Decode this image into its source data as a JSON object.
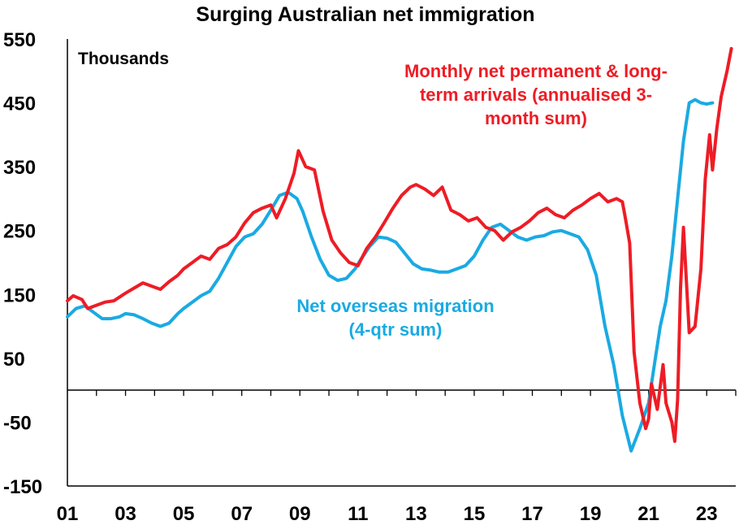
{
  "chart_data": {
    "type": "line",
    "title": "Surging Australian net immigration",
    "units_label": "Thousands",
    "xlabel": "",
    "ylabel": "",
    "xlim": [
      2001,
      2024
    ],
    "ylim": [
      -150,
      550
    ],
    "y_ticks": [
      550,
      450,
      350,
      250,
      150,
      50,
      -50,
      -150
    ],
    "x_tick_labels": [
      "01",
      "03",
      "05",
      "07",
      "09",
      "11",
      "13",
      "15",
      "17",
      "19",
      "21",
      "23"
    ],
    "x_tick_years": [
      2001,
      2003,
      2005,
      2007,
      2009,
      2011,
      2013,
      2015,
      2017,
      2019,
      2021,
      2023
    ],
    "grid": false,
    "series": [
      {
        "name": "Monthly net permanent & long-term arrivals (annualised 3-month sum)",
        "label_lines": [
          "Monthly net permanent & long-",
          "term arrivals (annualised 3-",
          "month sum)"
        ],
        "color": "#ee1c25",
        "x": [
          2001.0,
          2001.2,
          2001.5,
          2001.7,
          2002.0,
          2002.3,
          2002.6,
          2003.0,
          2003.3,
          2003.6,
          2003.9,
          2004.2,
          2004.5,
          2004.8,
          2005.0,
          2005.3,
          2005.6,
          2005.9,
          2006.2,
          2006.5,
          2006.8,
          2007.1,
          2007.4,
          2007.7,
          2008.0,
          2008.2,
          2008.5,
          2008.8,
          2008.95,
          2009.2,
          2009.5,
          2009.8,
          2010.1,
          2010.4,
          2010.7,
          2011.0,
          2011.3,
          2011.6,
          2011.9,
          2012.2,
          2012.5,
          2012.8,
          2013.0,
          2013.3,
          2013.6,
          2013.9,
          2014.2,
          2014.5,
          2014.8,
          2015.1,
          2015.4,
          2015.7,
          2016.0,
          2016.3,
          2016.6,
          2016.9,
          2017.2,
          2017.5,
          2017.8,
          2018.1,
          2018.4,
          2018.7,
          2019.0,
          2019.3,
          2019.6,
          2019.9,
          2020.1,
          2020.2,
          2020.35,
          2020.5,
          2020.7,
          2020.9,
          2021.0,
          2021.1,
          2021.3,
          2021.5,
          2021.6,
          2021.8,
          2021.9,
          2022.0,
          2022.1,
          2022.2,
          2022.4,
          2022.6,
          2022.8,
          2022.95,
          2023.1,
          2023.2,
          2023.35,
          2023.5,
          2023.7,
          2023.85
        ],
        "values": [
          140,
          148,
          142,
          128,
          133,
          138,
          140,
          152,
          160,
          168,
          163,
          158,
          170,
          180,
          190,
          200,
          210,
          205,
          222,
          228,
          240,
          262,
          278,
          285,
          290,
          270,
          300,
          340,
          375,
          350,
          345,
          280,
          235,
          215,
          200,
          195,
          222,
          240,
          262,
          285,
          305,
          318,
          322,
          315,
          305,
          318,
          282,
          275,
          265,
          270,
          255,
          250,
          235,
          248,
          255,
          265,
          278,
          285,
          275,
          270,
          282,
          290,
          300,
          308,
          295,
          300,
          295,
          270,
          230,
          60,
          -20,
          -60,
          -45,
          10,
          -30,
          40,
          -20,
          -50,
          -80,
          -15,
          160,
          255,
          90,
          100,
          190,
          330,
          400,
          345,
          410,
          460,
          500,
          535
        ]
      },
      {
        "name": "Net overseas migration (4-qtr sum)",
        "label_lines": [
          "Net overseas migration",
          "(4-qtr sum)"
        ],
        "color": "#1aaae2",
        "x": [
          2001.0,
          2001.3,
          2001.6,
          2001.9,
          2002.2,
          2002.5,
          2002.8,
          2003.0,
          2003.3,
          2003.6,
          2003.9,
          2004.2,
          2004.5,
          2004.8,
          2005.0,
          2005.3,
          2005.6,
          2005.9,
          2006.2,
          2006.5,
          2006.8,
          2007.1,
          2007.4,
          2007.7,
          2008.0,
          2008.3,
          2008.6,
          2008.9,
          2009.1,
          2009.4,
          2009.7,
          2010.0,
          2010.3,
          2010.6,
          2010.9,
          2011.1,
          2011.4,
          2011.7,
          2012.0,
          2012.3,
          2012.6,
          2012.9,
          2013.2,
          2013.5,
          2013.8,
          2014.1,
          2014.4,
          2014.7,
          2015.0,
          2015.3,
          2015.6,
          2015.9,
          2016.2,
          2016.5,
          2016.8,
          2017.1,
          2017.4,
          2017.7,
          2018.0,
          2018.3,
          2018.6,
          2018.9,
          2019.2,
          2019.5,
          2019.8,
          2020.1,
          2020.4,
          2020.7,
          2021.0,
          2021.2,
          2021.4,
          2021.6,
          2021.8,
          2022.0,
          2022.2,
          2022.4,
          2022.6,
          2022.8,
          2023.0,
          2023.2
        ],
        "values": [
          115,
          128,
          132,
          122,
          112,
          112,
          115,
          120,
          118,
          112,
          105,
          100,
          105,
          120,
          128,
          138,
          148,
          155,
          175,
          200,
          225,
          240,
          245,
          260,
          282,
          305,
          310,
          300,
          280,
          240,
          205,
          180,
          172,
          175,
          190,
          205,
          225,
          240,
          238,
          232,
          215,
          198,
          190,
          188,
          185,
          185,
          190,
          195,
          210,
          235,
          255,
          260,
          250,
          240,
          235,
          240,
          242,
          248,
          250,
          245,
          240,
          220,
          180,
          100,
          40,
          -40,
          -95,
          -60,
          -20,
          40,
          100,
          140,
          210,
          300,
          390,
          450,
          455,
          450,
          448,
          450
        ]
      }
    ]
  }
}
